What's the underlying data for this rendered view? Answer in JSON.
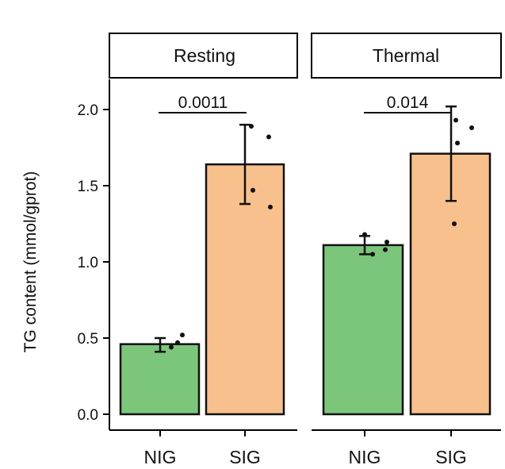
{
  "chart_data": {
    "type": "bar",
    "ylabel": "TG content (mmol/gprot)",
    "ylim": [
      0,
      2.2
    ],
    "yticks": [
      0.0,
      0.5,
      1.0,
      1.5,
      2.0
    ],
    "ytick_labels": [
      "0.0",
      "0.5",
      "1.0",
      "1.5",
      "2.0"
    ],
    "colors": {
      "NIG": "#7cc67c",
      "SIG": "#f8c08c"
    },
    "panels": [
      {
        "title": "Resting",
        "categories": [
          "NIG",
          "SIG"
        ],
        "bars": [
          {
            "group": "NIG",
            "value": 0.46,
            "err_low": 0.41,
            "err_high": 0.5,
            "points": [
              0.44,
              0.47,
              0.52
            ]
          },
          {
            "group": "SIG",
            "value": 1.64,
            "err_low": 1.38,
            "err_high": 1.9,
            "points": [
              1.89,
              1.82,
              1.47,
              1.36
            ]
          }
        ],
        "pvalue": "0.0011"
      },
      {
        "title": "Thermal",
        "categories": [
          "NIG",
          "SIG"
        ],
        "bars": [
          {
            "group": "NIG",
            "value": 1.11,
            "err_low": 1.05,
            "err_high": 1.17,
            "points": [
              1.18,
              1.05,
              1.13,
              1.08
            ]
          },
          {
            "group": "SIG",
            "value": 1.71,
            "err_low": 1.4,
            "err_high": 2.02,
            "points": [
              1.93,
              1.88,
              1.78,
              1.25
            ]
          }
        ],
        "pvalue": "0.014"
      }
    ]
  }
}
